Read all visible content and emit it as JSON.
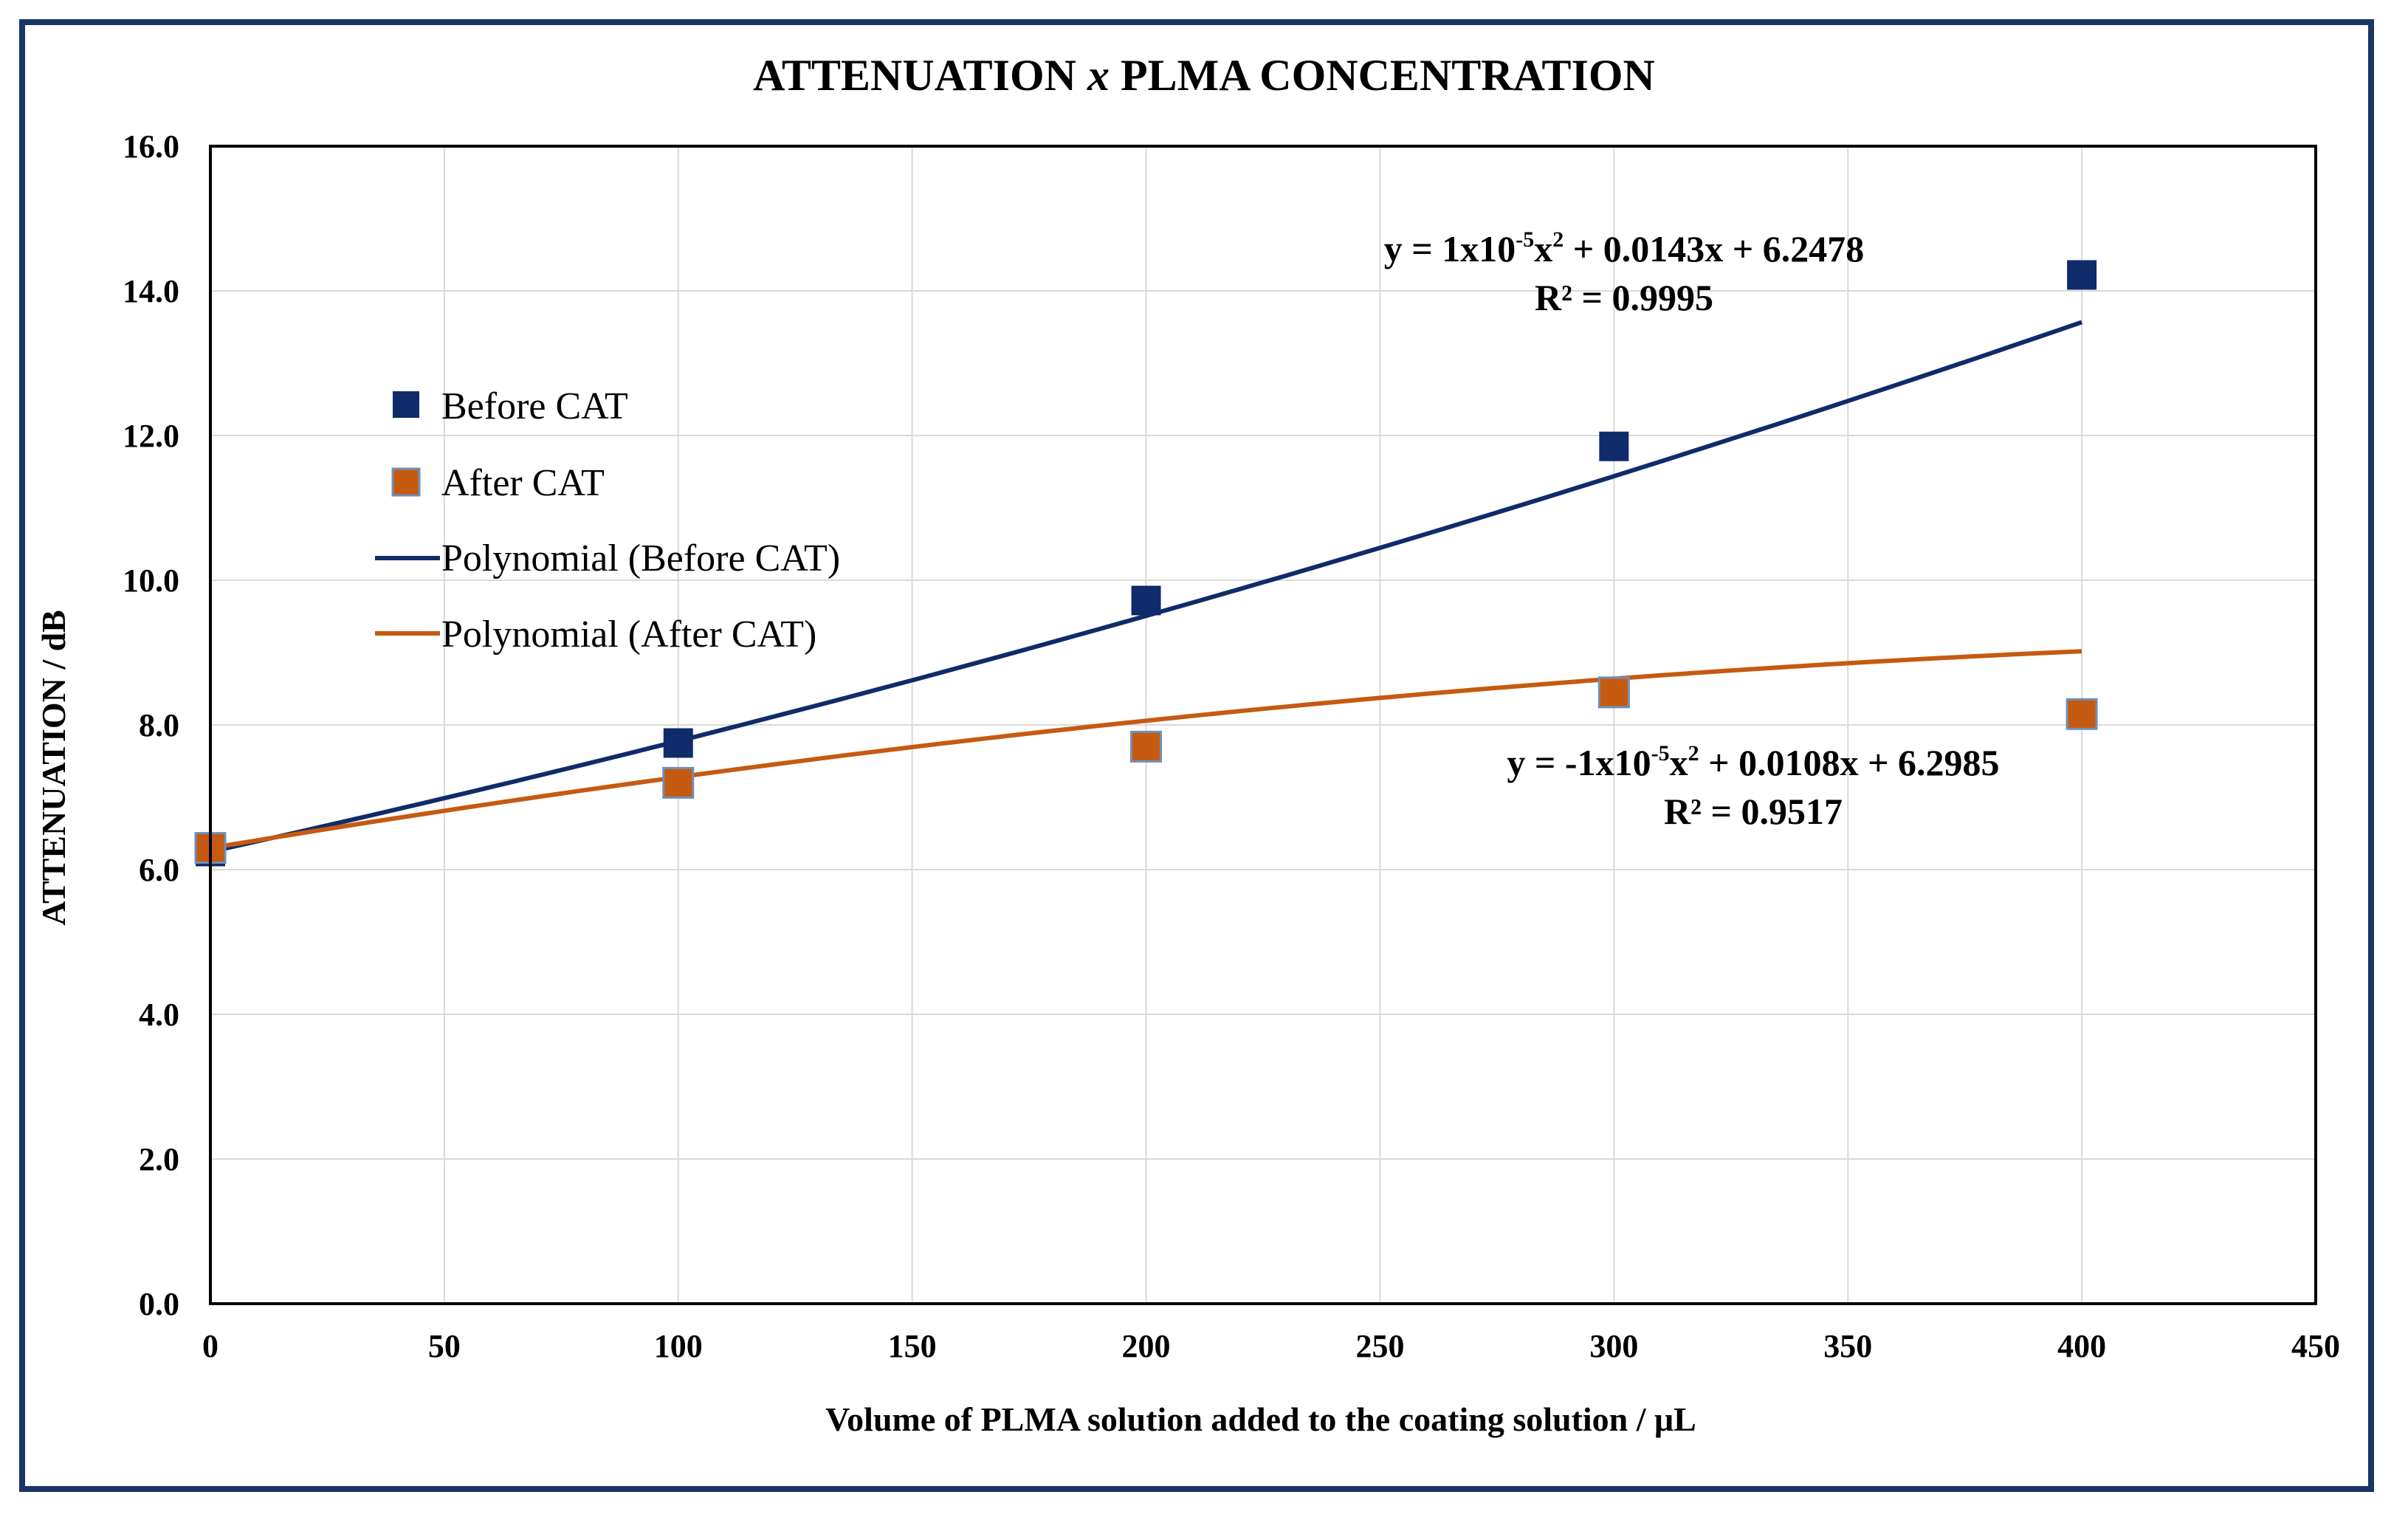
{
  "chart_data": {
    "type": "scatter",
    "title_parts": [
      "ATTENUATION ",
      "x",
      " PLMA CONCENTRATION"
    ],
    "xlabel": "Volume of PLMA solution added to the coating solution / μL",
    "ylabel": "ATTENUATION / dB",
    "xlim": [
      0,
      450
    ],
    "ylim": [
      0,
      16
    ],
    "x_ticks": [
      0,
      50,
      100,
      150,
      200,
      250,
      300,
      350,
      400,
      450
    ],
    "y_ticks": [
      0,
      2,
      4,
      6,
      8,
      10,
      12,
      14,
      16
    ],
    "x_tick_labels": [
      "0",
      "50",
      "100",
      "150",
      "200",
      "250",
      "300",
      "350",
      "400",
      "450"
    ],
    "y_tick_labels": [
      "0.0",
      "2.0",
      "4.0",
      "6.0",
      "8.0",
      "10.0",
      "12.0",
      "14.0",
      "16.0"
    ],
    "grid": true,
    "legend_position": "left",
    "series": [
      {
        "name": "Before CAT",
        "color": "#102b6a",
        "marker": "square",
        "x": [
          0,
          100,
          200,
          300,
          400
        ],
        "y": [
          6.25,
          7.75,
          9.72,
          11.85,
          14.22
        ]
      },
      {
        "name": "After CAT",
        "color": "#c55a11",
        "marker": "square",
        "x": [
          0,
          100,
          200,
          300,
          400
        ],
        "y": [
          6.3,
          7.2,
          7.7,
          8.45,
          8.15
        ]
      }
    ],
    "trendlines": [
      {
        "name": "Polynomial (Before CAT)",
        "color": "#102b6a",
        "coefficients": [
          1e-05,
          0.0143,
          6.2478
        ],
        "x_range": [
          0,
          400
        ],
        "equation": {
          "prefix": "y = 1x10",
          "exp": "-5",
          "mid": "x",
          "sq": "2",
          "suffix": " + 0.0143x + 6.2478"
        },
        "r2_text": "R² = 0.9995"
      },
      {
        "name": "Polynomial (After CAT)",
        "color": "#c55a11",
        "coefficients": [
          -1e-05,
          0.0108,
          6.2985
        ],
        "x_range": [
          0,
          400
        ],
        "equation": {
          "prefix": "y = -1x10",
          "exp": "-5",
          "mid": "x",
          "sq": "2",
          "suffix": " + 0.0108x + 6.2985"
        },
        "r2_text": "R² = 0.9517"
      }
    ]
  }
}
